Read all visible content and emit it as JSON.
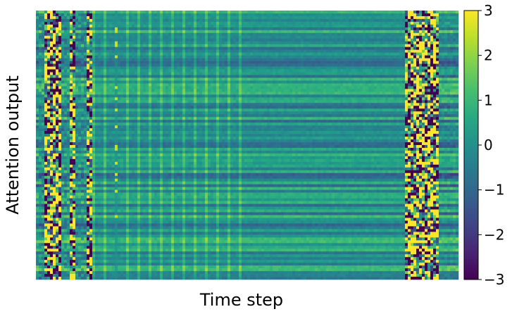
{
  "chart_data": {
    "type": "heatmap",
    "xlabel": "Time step",
    "ylabel": "Attention output",
    "colormap": "viridis",
    "colorbar": {
      "vmin": -3,
      "vmax": 3,
      "ticks": [
        3,
        2,
        1,
        0,
        -1,
        -2,
        -3
      ],
      "tick_labels": [
        "3",
        "2",
        "1",
        "0",
        "−1",
        "−2",
        "−3"
      ]
    },
    "n_rows": 96,
    "n_cols": 150,
    "x_ticks": "none",
    "y_ticks": "none",
    "features": {
      "columns_saturated_mixed": [
        [
          3,
          8
        ],
        [
          12,
          13
        ],
        [
          18,
          19
        ]
      ],
      "column_dim_sparse": [
        28
      ],
      "columns_periodic_mild": [
        20,
        72
      ],
      "columns_smooth_band": [
        73,
        130
      ],
      "columns_saturated_mixed_right": [
        131,
        142
      ],
      "columns_band_far_right": [
        143,
        149
      ]
    }
  },
  "colors": {
    "viridis_low": "#440154",
    "viridis_mid": "#21918c",
    "viridis_high": "#fde725"
  }
}
